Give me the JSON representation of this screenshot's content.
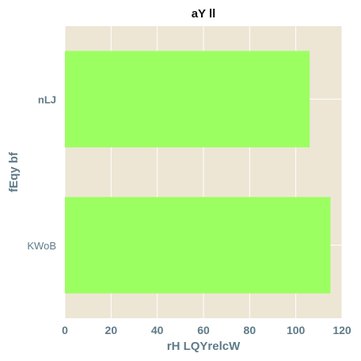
{
  "chart_data": {
    "type": "bar",
    "orientation": "horizontal",
    "title": "aY ll",
    "xlabel": "rH LQYrelcW",
    "ylabel": "fEqy bf",
    "categories": [
      "nLJ",
      "KWoB"
    ],
    "values": [
      106,
      115
    ],
    "xlim": [
      0,
      120
    ],
    "xticks": [
      0,
      20,
      40,
      60,
      80,
      100,
      120
    ],
    "grid": true,
    "colors": {
      "bar": "#9cff61",
      "plot_background": "#ede6d5",
      "grid": "#ffffff",
      "text": "#5f7a88"
    }
  }
}
